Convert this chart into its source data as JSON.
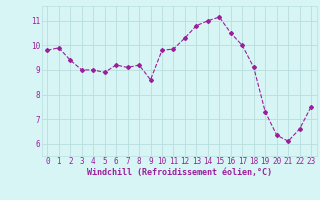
{
  "x": [
    0,
    1,
    2,
    3,
    4,
    5,
    6,
    7,
    8,
    9,
    10,
    11,
    12,
    13,
    14,
    15,
    16,
    17,
    18,
    19,
    20,
    21,
    22,
    23
  ],
  "y": [
    9.8,
    9.9,
    9.4,
    9.0,
    9.0,
    8.9,
    9.2,
    9.1,
    9.2,
    8.6,
    9.8,
    9.85,
    10.3,
    10.8,
    11.0,
    11.15,
    10.5,
    10.0,
    9.1,
    7.3,
    6.35,
    6.1,
    6.6,
    7.5
  ],
  "line_color": "#9b1f9b",
  "marker": "D",
  "markersize": 2.0,
  "linewidth": 0.8,
  "bg_color": "#d8f5f5",
  "grid_color": "#b8dede",
  "xlabel": "Windchill (Refroidissement éolien,°C)",
  "xlabel_color": "#9b1f9b",
  "xlabel_fontsize": 6.0,
  "tick_color": "#9b1f9b",
  "tick_fontsize": 5.5,
  "ytick_labels": [
    "6",
    "7",
    "8",
    "9",
    "10",
    "11"
  ],
  "ytick_values": [
    6,
    7,
    8,
    9,
    10,
    11
  ],
  "ylim": [
    5.5,
    11.6
  ],
  "xlim": [
    -0.5,
    23.5
  ]
}
